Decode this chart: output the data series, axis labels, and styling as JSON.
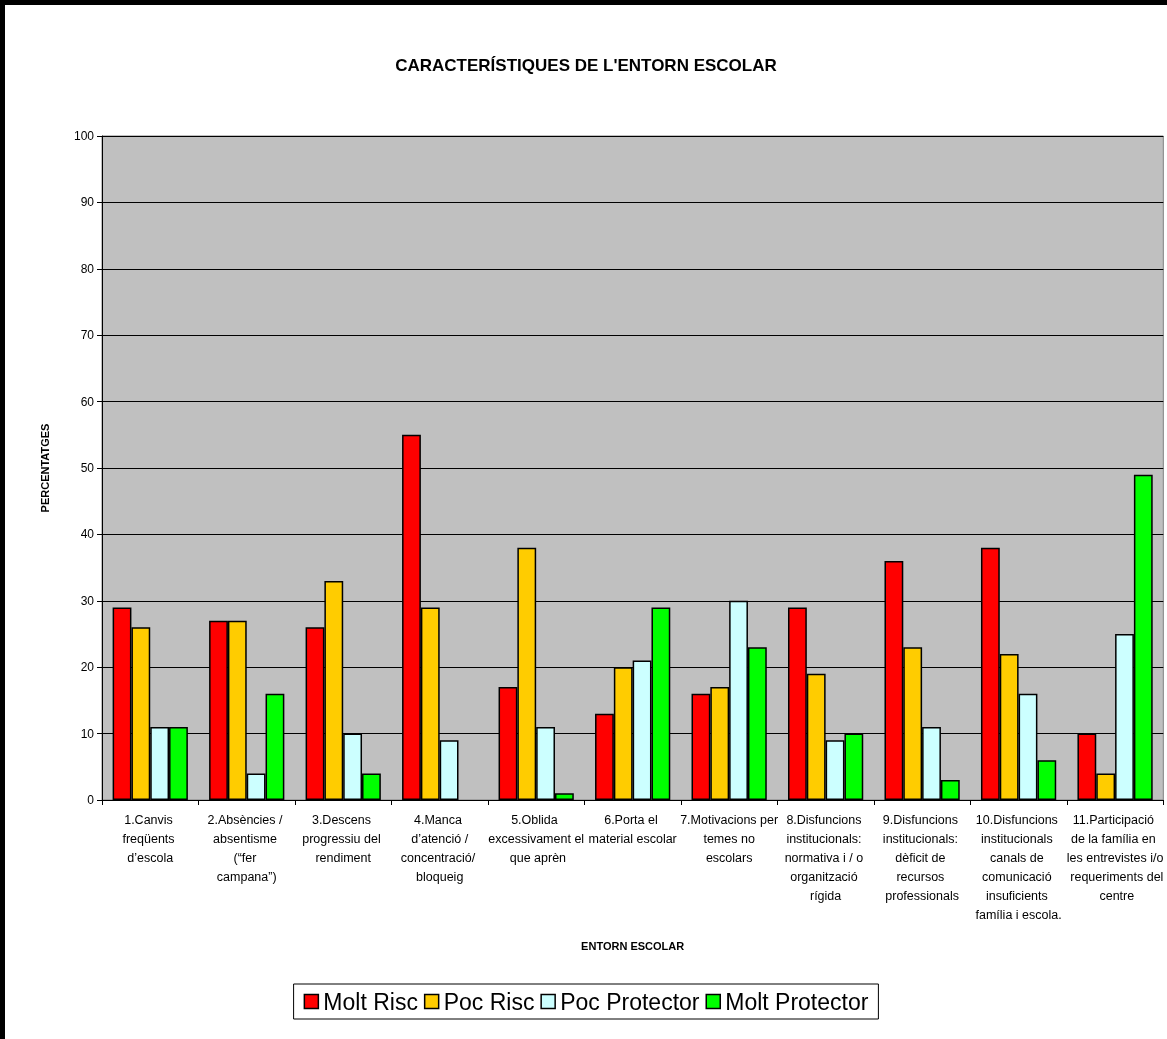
{
  "chart_data": {
    "type": "bar",
    "title": "CARACTERÍSTIQUES DE L'ENTORN ESCOLAR",
    "xlabel": "ENTORN ESCOLAR",
    "ylabel": "PERCENTATGES",
    "categories": [
      "1.Canvis freqüents d’escola",
      "2.Absències / absentisme (“fer campana”)",
      "3.Descens progressiu del rendiment",
      "4.Manca d’atenció /concentració/ bloqueig",
      "5.Oblida excessivament el que aprèn",
      "6.Porta el material escolar",
      "7.Motivacions per temes no escolars",
      "8.Disfuncions institucionals: normativa i / o organització rígida",
      "9.Disfuncions institucionals: dèficit de recursos professionals",
      "10.Disfuncions institucionals canals de comunicació insuficients família i escola.",
      "11.Participació de la família en les entrevistes i/o requeriments del centre"
    ],
    "series": [
      {
        "name": "Molt Risc",
        "color": "#ff0000",
        "values": [
          29,
          27,
          26,
          55,
          17,
          13,
          16,
          29,
          36,
          38,
          10
        ]
      },
      {
        "name": "Poc Risc",
        "color": "#ffcc00",
        "values": [
          26,
          27,
          33,
          29,
          38,
          20,
          17,
          19,
          23,
          22,
          4
        ]
      },
      {
        "name": "Poc Protector",
        "color": "#ccffff",
        "values": [
          11,
          4,
          10,
          9,
          11,
          21,
          30,
          9,
          11,
          16,
          25
        ]
      },
      {
        "name": "Molt Protector",
        "color": "#00ff00",
        "values": [
          11,
          16,
          4,
          null,
          1,
          29,
          23,
          10,
          3,
          6,
          49
        ]
      }
    ],
    "ylim": [
      0,
      100
    ],
    "yticks": [
      0,
      10,
      20,
      30,
      40,
      50,
      60,
      70,
      80,
      90,
      100
    ],
    "grid": "y",
    "legend": "bottom"
  }
}
